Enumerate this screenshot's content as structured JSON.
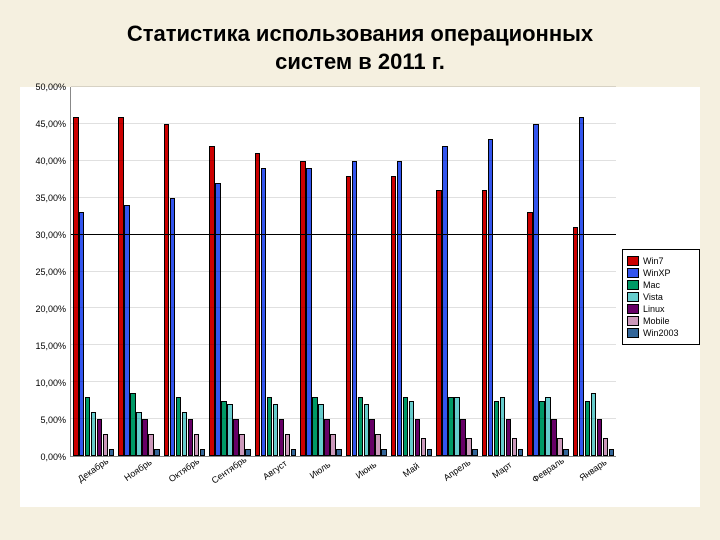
{
  "title_line1": "Статистика использования операционных",
  "title_line2": "систем в 2011 г.",
  "title_fontsize": 22,
  "chart": {
    "type": "bar",
    "background_color": "#ffffff",
    "page_background": "#f5f0e0",
    "ylim": [
      0,
      50
    ],
    "ytick_step": 5,
    "y_suffix": ",00%",
    "reference_line_y": 30,
    "tick_fontsize": 9,
    "xlabel_fontsize": 9,
    "legend_fontsize": 9,
    "categories": [
      "Декабрь",
      "Ноябрь",
      "Октябрь",
      "Сентябрь",
      "Август",
      "Июль",
      "Июнь",
      "Май",
      "Апрель",
      "Март",
      "Февраль",
      "Январь"
    ],
    "series": [
      {
        "name": "Win7",
        "color": "#cc0000",
        "values": [
          46,
          46,
          45,
          42,
          41,
          40,
          38,
          38,
          36,
          36,
          33,
          31
        ]
      },
      {
        "name": "WinXP",
        "color": "#3355ee",
        "values": [
          33,
          34,
          35,
          37,
          39,
          39,
          40,
          40,
          42,
          43,
          45,
          46
        ]
      },
      {
        "name": "Mac",
        "color": "#009966",
        "values": [
          8,
          8.5,
          8,
          7.5,
          8,
          8,
          8,
          8,
          8,
          7.5,
          7.5,
          7.5
        ]
      },
      {
        "name": "Vista",
        "color": "#66cccc",
        "values": [
          6,
          6,
          6,
          7,
          7,
          7,
          7,
          7.5,
          8,
          8,
          8,
          8.5
        ]
      },
      {
        "name": "Linux",
        "color": "#660066",
        "values": [
          5,
          5,
          5,
          5,
          5,
          5,
          5,
          5,
          5,
          5,
          5,
          5
        ]
      },
      {
        "name": "Mobile",
        "color": "#cc99bb",
        "values": [
          3,
          3,
          3,
          3,
          3,
          3,
          3,
          2.5,
          2.5,
          2.5,
          2.5,
          2.5
        ]
      },
      {
        "name": "Win2003",
        "color": "#336699",
        "values": [
          1,
          1,
          1,
          1,
          1,
          1,
          1,
          1,
          1,
          1,
          1,
          1
        ]
      }
    ]
  }
}
